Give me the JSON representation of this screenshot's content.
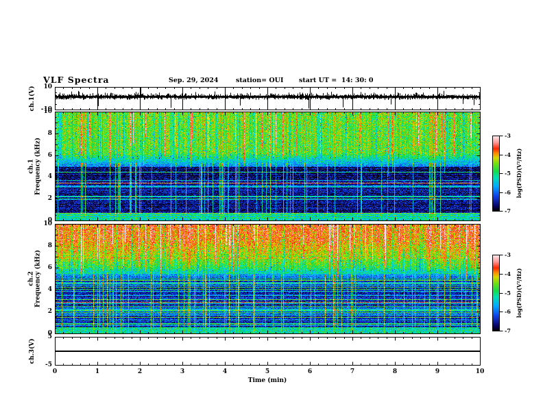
{
  "header": {
    "title": "VLF Spectra",
    "date": "Sep. 29, 2024",
    "station": "station= OUI",
    "start_ut": "start UT =  14: 30: 0"
  },
  "xaxis": {
    "label": "Time (min)",
    "tick_labels": [
      "0",
      "1",
      "2",
      "3",
      "4",
      "5",
      "6",
      "7",
      "8",
      "9",
      "10"
    ],
    "range_min": [
      0,
      10
    ],
    "minor_tick_step_min": 0.2
  },
  "panels": {
    "ch1_wave": {
      "ylabel": "ch.1(V)",
      "ytick_labels": [
        "10",
        "-10"
      ],
      "ylim": [
        -10,
        10
      ]
    },
    "ch1_spec": {
      "ylabel_line1": "ch.1",
      "ylabel_line2": "Frequency (kHz)",
      "ytick_labels": [
        "10",
        "8",
        "6",
        "4",
        "2",
        "0"
      ],
      "ylim_kHz": [
        0,
        10
      ]
    },
    "ch2_spec": {
      "ylabel_line1": "ch.2",
      "ylabel_line2": "Frequency (kHz)",
      "ytick_labels": [
        "10",
        "8",
        "6",
        "4",
        "2",
        "0"
      ],
      "ylim_kHz": [
        0,
        10
      ]
    },
    "ch3_wave": {
      "ylabel": "ch.3(V)",
      "ytick_labels": [
        "5",
        "-5"
      ],
      "ylim": [
        -5,
        5
      ]
    }
  },
  "colorbar": {
    "label": "log(PSD)(V²/Hz)",
    "tick_labels": [
      "-3",
      "-4",
      "-5",
      "-6",
      "-7"
    ],
    "range": [
      -3,
      -7
    ],
    "colormap_stops": [
      {
        "t": 0.0,
        "c": "#000000"
      },
      {
        "t": 0.07,
        "c": "#0a0566"
      },
      {
        "t": 0.2,
        "c": "#1040e8"
      },
      {
        "t": 0.33,
        "c": "#00aaff"
      },
      {
        "t": 0.45,
        "c": "#00e0b0"
      },
      {
        "t": 0.53,
        "c": "#14dd4c"
      },
      {
        "t": 0.63,
        "c": "#74e010"
      },
      {
        "t": 0.71,
        "c": "#d8d800"
      },
      {
        "t": 0.77,
        "c": "#ff8800"
      },
      {
        "t": 0.83,
        "c": "#ff2600"
      },
      {
        "t": 0.91,
        "c": "#ff9494"
      },
      {
        "t": 1.0,
        "c": "#ffeeee"
      }
    ]
  },
  "chart_data": [
    {
      "id": "ch1_waveform",
      "type": "line",
      "ylabel": "ch.1(V)",
      "ylim": [
        -10,
        10
      ],
      "x_range_min": [
        0,
        10
      ],
      "signal": {
        "kind": "broadband-noise-trace",
        "mean_V": 1.3,
        "typical_halfwidth_V": 1.6,
        "spikes": [
          {
            "t": 0.12,
            "a": 5
          },
          {
            "t": 0.55,
            "a": 6.5
          },
          {
            "t": 1.02,
            "a": -7
          },
          {
            "t": 1.35,
            "a": 4.5
          },
          {
            "t": 2.02,
            "a": 9.5
          },
          {
            "t": 2.45,
            "a": 5
          },
          {
            "t": 2.72,
            "a": -8.5
          },
          {
            "t": 3.3,
            "a": 5.5
          },
          {
            "t": 3.75,
            "a": 6
          },
          {
            "t": 4.35,
            "a": -6.5
          },
          {
            "t": 4.6,
            "a": 5
          },
          {
            "t": 5.0,
            "a": 6.5
          },
          {
            "t": 5.5,
            "a": 5
          },
          {
            "t": 5.97,
            "a": -9
          },
          {
            "t": 6.4,
            "a": 5
          },
          {
            "t": 6.78,
            "a": -8
          },
          {
            "t": 7.2,
            "a": 5.5
          },
          {
            "t": 7.9,
            "a": -5.5
          },
          {
            "t": 8.5,
            "a": 5
          },
          {
            "t": 9.15,
            "a": 6.5
          },
          {
            "t": 9.6,
            "a": -5
          },
          {
            "t": 9.85,
            "a": -6
          }
        ],
        "minute_gridlines": true
      }
    },
    {
      "id": "ch1_spectrogram",
      "type": "heatmap",
      "flim_kHz": [
        0,
        10
      ],
      "value_range_logPSD": [
        -7,
        -3
      ],
      "profile_breakpoints": [
        {
          "f": 10,
          "v": -4.55
        },
        {
          "f": 6.2,
          "v": -4.65
        },
        {
          "f": 5.0,
          "v": -5.9
        },
        {
          "f": 4.9,
          "v": -6.6
        },
        {
          "f": 0.75,
          "v": -6.6
        },
        {
          "f": 0.7,
          "v": -5.35
        },
        {
          "f": 0,
          "v": -5.3
        }
      ],
      "stripes": {
        "fmax": 5.0,
        "cyan_prob": 0.22,
        "cyan_amp": [
          0.7,
          1.6
        ],
        "red_frange": [
          2.2,
          3.7
        ],
        "red_prob": 0.1,
        "red_amp": [
          2.5,
          3.1
        ]
      },
      "streaks": {
        "red_prob": 0.09,
        "red_amp": [
          0.8,
          1.7
        ],
        "red_fbottom": [
          4.2,
          8.0
        ],
        "full_prob": 0.1,
        "full_amp": [
          0.8,
          1.8
        ]
      },
      "fixed_red_rows": []
    },
    {
      "id": "ch2_spectrogram",
      "type": "heatmap",
      "flim_kHz": [
        0,
        10
      ],
      "value_range_logPSD": [
        -7,
        -3
      ],
      "profile_breakpoints": [
        {
          "f": 10,
          "v": -3.8
        },
        {
          "f": 8.6,
          "v": -3.9
        },
        {
          "f": 7.2,
          "v": -4.35
        },
        {
          "f": 6.0,
          "v": -4.85
        },
        {
          "f": 5.2,
          "v": -5.9
        },
        {
          "f": 5.0,
          "v": -6.4
        },
        {
          "f": 0.65,
          "v": -6.4
        },
        {
          "f": 0.6,
          "v": -5.4
        },
        {
          "f": 0,
          "v": -5.4
        }
      ],
      "stripes": {
        "fmax": 5.1,
        "cyan_prob": 0.32,
        "cyan_amp": [
          0.8,
          1.8
        ],
        "red_frange": [
          2.0,
          3.2
        ],
        "red_prob": 0.04,
        "red_amp": [
          2.4,
          2.9
        ]
      },
      "streaks": {
        "red_prob": 0.11,
        "red_amp": [
          0.7,
          1.6
        ],
        "red_fbottom": [
          4.5,
          8.5
        ],
        "full_prob": 0.11,
        "full_amp": [
          0.8,
          1.9
        ]
      },
      "fixed_red_rows": [
        {
          "f": 6.9,
          "amp": 0.85
        },
        {
          "f": 5.55,
          "amp": 0.95
        }
      ]
    },
    {
      "id": "ch3_trace",
      "type": "line",
      "ylabel": "ch.3(V)",
      "ylim": [
        -5,
        5
      ],
      "constant_value_V": 0
    }
  ]
}
